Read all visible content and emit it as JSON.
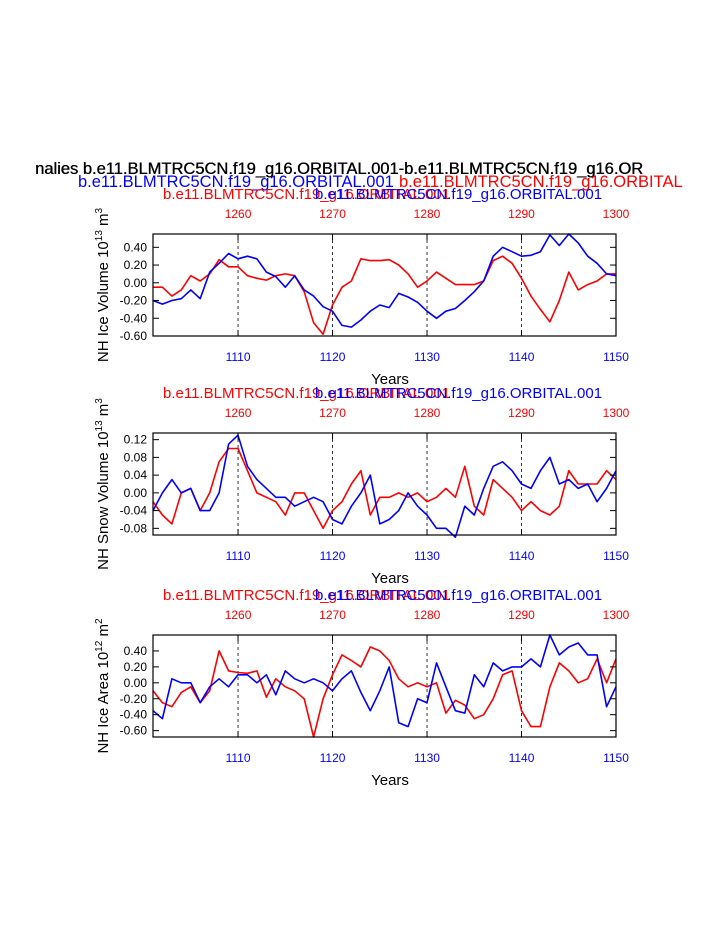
{
  "header": {
    "main_title": "nalies b.e11.BLMTRC5CN.f19_g16.ORBITAL.001-b.e11.BLMTRC5CN.f19_g16.OR",
    "line2_blue": "b.e11.BLMTRC5CN.f19_g16.ORBITAL.001",
    "line2_red": "b.e11.BLMTRC5CN.f19_g16.ORBITAL",
    "colors": {
      "red": "#ff0000",
      "blue": "#0000ff",
      "black": "#000000"
    }
  },
  "chart_data": [
    {
      "type": "line",
      "top_title_red": "b.e11.BLMTRC5CN.f19_g16.ORBITAL.001",
      "top_title_blue": "b.e11.BLMTRC5CN.f19_g16.ORBITAL.001",
      "ylabel": "NH Ice Volume 10",
      "ylabel_exp": "13",
      "ylabel_unit": "m",
      "ylabel_unit_exp": "3",
      "xlabel": "Years",
      "ylim": [
        -0.6,
        0.55
      ],
      "yticks": [
        "0.40",
        "0.20",
        "0.00",
        "-0.20",
        "-0.40",
        "-0.60"
      ],
      "ytick_values": [
        0.4,
        0.2,
        0.0,
        -0.2,
        -0.4,
        -0.6
      ],
      "x_bottom": {
        "range": [
          1101,
          1150
        ],
        "ticks": [
          1110,
          1120,
          1130,
          1140,
          1150
        ],
        "color": "#0000ff"
      },
      "x_top": {
        "range": [
          1251,
          1300
        ],
        "ticks": [
          1260,
          1270,
          1280,
          1290,
          1300
        ],
        "color": "#ff0000"
      },
      "series": [
        {
          "color": "#ff0000",
          "axis": "top",
          "values": [
            -0.05,
            -0.05,
            -0.15,
            -0.08,
            0.08,
            0.02,
            0.1,
            0.26,
            0.18,
            0.18,
            0.08,
            0.05,
            0.03,
            0.08,
            0.1,
            0.08,
            -0.1,
            -0.45,
            -0.58,
            -0.25,
            -0.05,
            0.02,
            0.27,
            0.25,
            0.25,
            0.26,
            0.2,
            0.1,
            -0.05,
            0.02,
            0.12,
            0.05,
            -0.02,
            -0.02,
            -0.02,
            0.02,
            0.25,
            0.3,
            0.22,
            0.05,
            -0.15,
            -0.3,
            -0.44,
            -0.2,
            0.12,
            -0.08,
            -0.02,
            0.02,
            0.1,
            0.1
          ]
        },
        {
          "color": "#0000ff",
          "axis": "bottom",
          "values": [
            -0.2,
            -0.24,
            -0.2,
            -0.18,
            -0.08,
            -0.18,
            0.12,
            0.22,
            0.33,
            0.27,
            0.3,
            0.27,
            0.12,
            0.07,
            -0.05,
            0.08,
            -0.08,
            -0.15,
            -0.27,
            -0.32,
            -0.48,
            -0.5,
            -0.42,
            -0.32,
            -0.25,
            -0.28,
            -0.12,
            -0.16,
            -0.22,
            -0.32,
            -0.4,
            -0.32,
            -0.29,
            -0.2,
            -0.1,
            0.02,
            0.3,
            0.4,
            0.35,
            0.3,
            0.31,
            0.35,
            0.54,
            0.42,
            0.55,
            0.45,
            0.3,
            0.22,
            0.1,
            0.08
          ]
        }
      ]
    },
    {
      "type": "line",
      "top_title_red": "b.e11.BLMTRC5CN.f19_g16.ORBITAL.001",
      "top_title_blue": "b.e11.BLMTRC5CN.f19_g16.ORBITAL.001",
      "ylabel": "NH Snow Volume 10",
      "ylabel_exp": "13",
      "ylabel_unit": "m",
      "ylabel_unit_exp": "3",
      "xlabel": "Years",
      "ylim": [
        -0.095,
        0.135
      ],
      "yticks": [
        "0.12",
        "0.08",
        "0.04",
        "0.00",
        "-0.04",
        "-0.08"
      ],
      "ytick_values": [
        0.12,
        0.08,
        0.04,
        0.0,
        -0.04,
        -0.08
      ],
      "x_bottom": {
        "range": [
          1101,
          1150
        ],
        "ticks": [
          1110,
          1120,
          1130,
          1140,
          1150
        ],
        "color": "#0000ff"
      },
      "x_top": {
        "range": [
          1251,
          1300
        ],
        "ticks": [
          1260,
          1270,
          1280,
          1290,
          1300
        ],
        "color": "#ff0000"
      },
      "series": [
        {
          "color": "#ff0000",
          "axis": "top",
          "values": [
            -0.02,
            -0.05,
            -0.07,
            0.0,
            0.01,
            -0.04,
            0.0,
            0.07,
            0.1,
            0.1,
            0.05,
            0.0,
            -0.01,
            -0.02,
            -0.05,
            0.0,
            0.0,
            -0.04,
            -0.08,
            -0.04,
            -0.02,
            0.02,
            0.05,
            -0.05,
            -0.01,
            -0.01,
            0.0,
            -0.01,
            0.0,
            -0.02,
            -0.01,
            0.01,
            -0.01,
            0.06,
            -0.03,
            -0.05,
            0.03,
            0.01,
            -0.01,
            -0.04,
            -0.02,
            -0.04,
            -0.05,
            -0.03,
            0.05,
            0.02,
            0.02,
            0.02,
            0.05,
            0.03
          ]
        },
        {
          "color": "#0000ff",
          "axis": "bottom",
          "values": [
            -0.04,
            0.0,
            0.03,
            0.0,
            0.01,
            -0.04,
            -0.04,
            0.0,
            0.11,
            0.13,
            0.06,
            0.03,
            0.01,
            -0.01,
            -0.01,
            -0.03,
            -0.02,
            -0.01,
            -0.02,
            -0.06,
            -0.07,
            -0.03,
            0.0,
            0.04,
            -0.07,
            -0.06,
            -0.04,
            0.0,
            -0.03,
            -0.05,
            -0.08,
            -0.08,
            -0.1,
            -0.03,
            -0.05,
            0.01,
            0.06,
            0.07,
            0.05,
            0.02,
            0.01,
            0.05,
            0.08,
            0.02,
            0.03,
            0.01,
            0.02,
            -0.02,
            0.01,
            0.05
          ]
        }
      ]
    },
    {
      "type": "line",
      "top_title_red": "b.e11.BLMTRC5CN.f19_g16.ORBITAL.001",
      "top_title_blue": "b.e11.BLMTRC5CN.f19_g16.ORBITAL.001",
      "ylabel": "NH Ice Area 10",
      "ylabel_exp": "12",
      "ylabel_unit": "m",
      "ylabel_unit_exp": "2",
      "xlabel": "Years",
      "ylim": [
        -0.68,
        0.6
      ],
      "yticks": [
        "0.40",
        "0.20",
        "0.00",
        "-0.20",
        "-0.40",
        "-0.60"
      ],
      "ytick_values": [
        0.4,
        0.2,
        0.0,
        -0.2,
        -0.4,
        -0.6
      ],
      "x_bottom": {
        "range": [
          1101,
          1150
        ],
        "ticks": [
          1110,
          1120,
          1130,
          1140,
          1150
        ],
        "color": "#0000ff"
      },
      "x_top": {
        "range": [
          1251,
          1300
        ],
        "ticks": [
          1260,
          1270,
          1280,
          1290,
          1300
        ],
        "color": "#ff0000"
      },
      "series": [
        {
          "color": "#ff0000",
          "axis": "top",
          "values": [
            -0.1,
            -0.25,
            -0.3,
            -0.12,
            -0.05,
            -0.25,
            -0.1,
            0.4,
            0.15,
            0.13,
            0.12,
            0.15,
            -0.18,
            0.05,
            -0.05,
            -0.1,
            -0.2,
            -0.68,
            -0.2,
            0.1,
            0.35,
            0.28,
            0.2,
            0.45,
            0.4,
            0.28,
            0.05,
            -0.05,
            0.0,
            -0.05,
            0.0,
            -0.38,
            -0.22,
            -0.28,
            -0.45,
            -0.4,
            -0.2,
            0.1,
            0.15,
            -0.35,
            -0.55,
            -0.55,
            -0.05,
            0.25,
            0.15,
            0.0,
            0.05,
            0.3,
            0.0,
            0.3
          ]
        },
        {
          "color": "#0000ff",
          "axis": "bottom",
          "values": [
            -0.35,
            -0.45,
            0.05,
            0.0,
            0.0,
            -0.25,
            -0.05,
            0.05,
            -0.05,
            0.1,
            0.1,
            0.0,
            0.1,
            -0.15,
            0.15,
            0.05,
            0.0,
            0.05,
            0.0,
            -0.1,
            0.05,
            0.15,
            -0.12,
            -0.35,
            -0.1,
            0.2,
            -0.5,
            -0.55,
            -0.2,
            -0.25,
            0.25,
            -0.05,
            -0.35,
            -0.38,
            0.1,
            -0.05,
            0.25,
            0.15,
            0.2,
            0.2,
            0.3,
            0.2,
            0.6,
            0.35,
            0.45,
            0.5,
            0.35,
            0.35,
            -0.3,
            -0.05
          ]
        }
      ]
    }
  ]
}
